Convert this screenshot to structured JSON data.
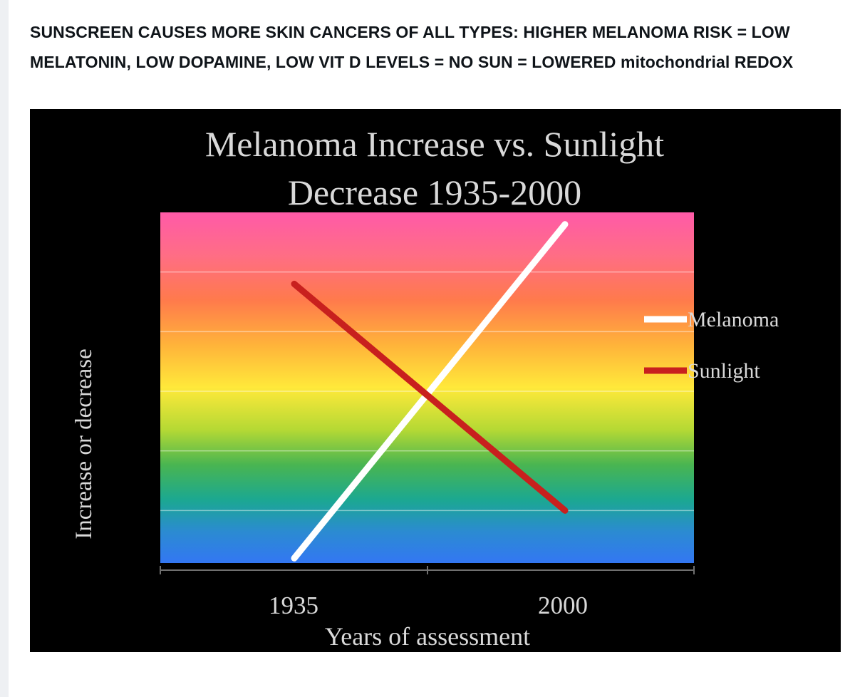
{
  "post": {
    "text": "SUNSCREEN CAUSES MORE SKIN CANCERS OF ALL TYPES: HIGHER MELANOMA RISK = LOW MELATONIN, LOW DOPAMINE, LOW VIT D LEVELS = NO SUN = LOWERED mitochondrial REDOX"
  },
  "chart_data": {
    "type": "line",
    "title": "Melanoma Increase vs. Sunlight Decrease 1935-2000",
    "title_lines": [
      "Melanoma Increase vs. Sunlight",
      "Decrease 1935-2000"
    ],
    "xlabel": "Years of assessment",
    "ylabel": "Increase or decrease",
    "x": [
      "1935",
      "2000"
    ],
    "ylim": [
      0,
      6
    ],
    "grid": true,
    "legend_position": "right",
    "series": [
      {
        "name": "Melanoma",
        "color": "#ffffff",
        "values": [
          0.2,
          5.8
        ]
      },
      {
        "name": "Sunlight",
        "color": "#c8201e",
        "values": [
          4.8,
          1.0
        ]
      }
    ],
    "background": "rainbow-gradient",
    "colors": {
      "frame": "#000000",
      "text": "#d9d9d9"
    }
  }
}
